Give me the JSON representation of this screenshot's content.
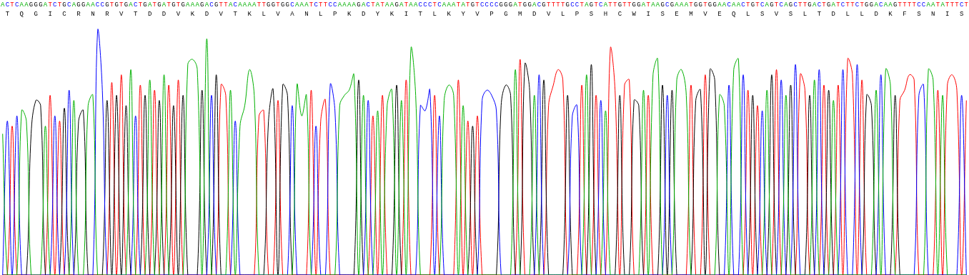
{
  "chart_data": {
    "type": "line",
    "categories": [
      "A",
      "C",
      "T",
      "C",
      "A",
      "A",
      "G",
      "G",
      "G",
      "A",
      "T",
      "C",
      "T",
      "G",
      "C",
      "A",
      "G",
      "G",
      "A",
      "A",
      "C",
      "C",
      "G",
      "T",
      "G",
      "T",
      "G",
      "A",
      "C",
      "T",
      "G",
      "A",
      "T",
      "G",
      "A",
      "T",
      "G",
      "T",
      "G",
      "A",
      "A",
      "A",
      "G",
      "A",
      "C",
      "G",
      "T",
      "T",
      "A",
      "C",
      "A",
      "A",
      "A",
      "A",
      "T",
      "T",
      "G",
      "G",
      "T",
      "G",
      "G",
      "C",
      "A",
      "A",
      "A",
      "T",
      "C",
      "T",
      "T",
      "C",
      "C",
      "A",
      "A",
      "A",
      "A",
      "G",
      "A",
      "C",
      "T",
      "A",
      "T",
      "A",
      "A",
      "G",
      "A",
      "T",
      "A",
      "A",
      "C",
      "C",
      "C",
      "T",
      "C",
      "A",
      "A",
      "A",
      "T",
      "A",
      "T",
      "G",
      "T",
      "C",
      "C",
      "C",
      "C",
      "G",
      "G",
      "G",
      "A",
      "T",
      "G",
      "G",
      "A",
      "C",
      "G",
      "T",
      "T",
      "T",
      "T",
      "G",
      "C",
      "C",
      "T",
      "A",
      "G",
      "T",
      "C",
      "A",
      "T",
      "T",
      "G",
      "T",
      "T",
      "G",
      "G",
      "A",
      "T",
      "A",
      "A",
      "G",
      "C",
      "G",
      "A",
      "A",
      "A",
      "T",
      "G",
      "G",
      "T",
      "G",
      "G",
      "A",
      "A",
      "C",
      "A",
      "A",
      "C",
      "T",
      "G",
      "T",
      "C",
      "A",
      "G",
      "T",
      "C",
      "A",
      "G",
      "C",
      "T",
      "T",
      "G",
      "A",
      "C",
      "T",
      "G",
      "A",
      "T",
      "C",
      "T",
      "T",
      "C",
      "T",
      "G",
      "G",
      "A",
      "C",
      "A",
      "A",
      "G",
      "T",
      "T",
      "T",
      "T",
      "C",
      "C",
      "A",
      "A",
      "T",
      "A",
      "T",
      "T",
      "T",
      "C",
      "T"
    ],
    "values": [
      55,
      60,
      58,
      62,
      64,
      60,
      55,
      68,
      66,
      58,
      70,
      62,
      60,
      65,
      72,
      68,
      60,
      64,
      66,
      70,
      95,
      72,
      68,
      75,
      70,
      78,
      66,
      80,
      62,
      74,
      70,
      76,
      72,
      68,
      78,
      74,
      66,
      76,
      70,
      82,
      84,
      80,
      72,
      92,
      70,
      78,
      74,
      70,
      72,
      60,
      58,
      66,
      80,
      70,
      62,
      64,
      60,
      72,
      68,
      74,
      70,
      66,
      74,
      62,
      70,
      72,
      58,
      60,
      68,
      74,
      64,
      66,
      70,
      72,
      78,
      76,
      70,
      68,
      62,
      64,
      70,
      66,
      72,
      74,
      68,
      76,
      88,
      70,
      66,
      64,
      72,
      70,
      62,
      68,
      74,
      70,
      76,
      66,
      60,
      58,
      62,
      68,
      72,
      70,
      64,
      66,
      74,
      70,
      80,
      84,
      82,
      72,
      70,
      78,
      76,
      66,
      74,
      80,
      76,
      70,
      62,
      66,
      74,
      78,
      82,
      70,
      68,
      64,
      88,
      72,
      70,
      74,
      76,
      68,
      66,
      72,
      70,
      78,
      84,
      74,
      70,
      72,
      76,
      80,
      70,
      74,
      68,
      72,
      78,
      80,
      76,
      70,
      66,
      74,
      80,
      84,
      78,
      72,
      70,
      66,
      64,
      72,
      78,
      80,
      76,
      70,
      74,
      82,
      78,
      72,
      70,
      76,
      80,
      74,
      72,
      68,
      74,
      80,
      84,
      78,
      82,
      76,
      70,
      66,
      72,
      78,
      80,
      74,
      70,
      68,
      72,
      78,
      76,
      70,
      74,
      80,
      76,
      72,
      70,
      74,
      78,
      72,
      70,
      68
    ],
    "series": [
      {
        "name": "A",
        "color": "#00b000"
      },
      {
        "name": "C",
        "color": "#0000ff"
      },
      {
        "name": "G",
        "color": "#000000"
      },
      {
        "name": "T",
        "color": "#ff0000"
      }
    ],
    "translation": "TQGICRNRVTDDVKDVTKLVANLPKDYKITLKYVPGMDVLPSHCWISEMVEQLSVSLTDLLDKFSNIS",
    "ylim": [
      0,
      100
    ],
    "grid": false,
    "tick_labels": "x"
  }
}
